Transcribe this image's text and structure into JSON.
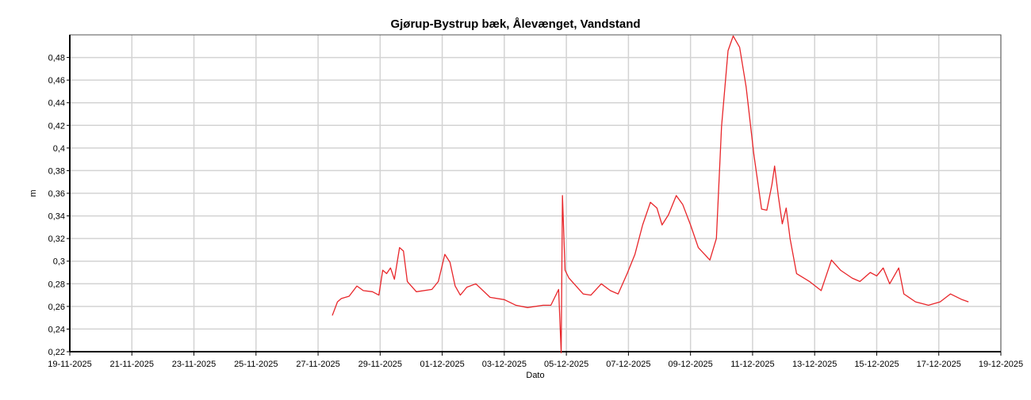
{
  "chart_data": {
    "type": "line",
    "title": "Gjørup-Bystrup bæk, Ålevænget, Vandstand",
    "xlabel": "Dato",
    "ylabel": "m",
    "color": "#e8262a",
    "grid": true,
    "xlim": [
      "2025-11-19 00:00",
      "2025-12-19 00:00"
    ],
    "xticks": [
      {
        "value": "2025-11-19 00:00",
        "label": "19-11-2025"
      },
      {
        "value": "2025-11-21 00:00",
        "label": "21-11-2025"
      },
      {
        "value": "2025-11-23 00:00",
        "label": "23-11-2025"
      },
      {
        "value": "2025-11-25 00:00",
        "label": "25-11-2025"
      },
      {
        "value": "2025-11-27 00:00",
        "label": "27-11-2025"
      },
      {
        "value": "2025-11-29 00:00",
        "label": "29-11-2025"
      },
      {
        "value": "2025-12-01 00:00",
        "label": "01-12-2025"
      },
      {
        "value": "2025-12-03 00:00",
        "label": "03-12-2025"
      },
      {
        "value": "2025-12-05 00:00",
        "label": "05-12-2025"
      },
      {
        "value": "2025-12-07 00:00",
        "label": "07-12-2025"
      },
      {
        "value": "2025-12-09 00:00",
        "label": "09-12-2025"
      },
      {
        "value": "2025-12-11 00:00",
        "label": "11-12-2025"
      },
      {
        "value": "2025-12-13 00:00",
        "label": "13-12-2025"
      },
      {
        "value": "2025-12-15 00:00",
        "label": "15-12-2025"
      },
      {
        "value": "2025-12-17 00:00",
        "label": "17-12-2025"
      },
      {
        "value": "2025-12-19 00:00",
        "label": "19-12-2025"
      }
    ],
    "ylim": [
      0.22,
      0.5
    ],
    "yticks": [
      {
        "value": 0.22,
        "label": "0,22"
      },
      {
        "value": 0.24,
        "label": "0,24"
      },
      {
        "value": 0.26,
        "label": "0,26"
      },
      {
        "value": 0.28,
        "label": "0,28"
      },
      {
        "value": 0.3,
        "label": "0,3"
      },
      {
        "value": 0.32,
        "label": "0,32"
      },
      {
        "value": 0.34,
        "label": "0,34"
      },
      {
        "value": 0.36,
        "label": "0,36"
      },
      {
        "value": 0.38,
        "label": "0,38"
      },
      {
        "value": 0.4,
        "label": "0,4"
      },
      {
        "value": 0.42,
        "label": "0,42"
      },
      {
        "value": 0.44,
        "label": "0,44"
      },
      {
        "value": 0.46,
        "label": "0,46"
      },
      {
        "value": 0.48,
        "label": "0,48"
      }
    ],
    "x": [
      "2025-11-27 11:00",
      "2025-11-27 15:00",
      "2025-11-27 18:00",
      "2025-11-28 00:00",
      "2025-11-28 06:00",
      "2025-11-28 11:00",
      "2025-11-28 18:00",
      "2025-11-28 23:00",
      "2025-11-29 02:00",
      "2025-11-29 05:00",
      "2025-11-29 08:00",
      "2025-11-29 11:00",
      "2025-11-29 15:00",
      "2025-11-29 18:00",
      "2025-11-29 21:00",
      "2025-11-30 04:00",
      "2025-11-30 16:00",
      "2025-11-30 21:00",
      "2025-12-01 02:00",
      "2025-12-01 06:00",
      "2025-12-01 10:00",
      "2025-12-01 14:00",
      "2025-12-01 19:00",
      "2025-12-02 02:00",
      "2025-12-02 13:00",
      "2025-12-03 00:00",
      "2025-12-03 09:00",
      "2025-12-03 18:00",
      "2025-12-04 06:00",
      "2025-12-04 12:00",
      "2025-12-04 18:00",
      "2025-12-04 20:00",
      "2025-12-04 21:00",
      "2025-12-04 23:00",
      "2025-12-05 02:00",
      "2025-12-05 13:00",
      "2025-12-05 19:00",
      "2025-12-06 03:00",
      "2025-12-06 10:00",
      "2025-12-06 16:00",
      "2025-12-06 23:00",
      "2025-12-07 05:00",
      "2025-12-07 11:00",
      "2025-12-07 17:00",
      "2025-12-07 22:00",
      "2025-12-08 02:00",
      "2025-12-08 07:00",
      "2025-12-08 13:00",
      "2025-12-08 18:00",
      "2025-12-09 00:00",
      "2025-12-09 06:00",
      "2025-12-09 15:00",
      "2025-12-09 20:00",
      "2025-12-10 00:00",
      "2025-12-10 05:00",
      "2025-12-10 09:00",
      "2025-12-10 14:00",
      "2025-12-10 19:00",
      "2025-12-11 01:00",
      "2025-12-11 07:00",
      "2025-12-11 11:00",
      "2025-12-11 15:00",
      "2025-12-11 17:00",
      "2025-12-11 20:00",
      "2025-12-11 23:00",
      "2025-12-12 02:00",
      "2025-12-12 05:00",
      "2025-12-12 10:00",
      "2025-12-12 20:00",
      "2025-12-13 05:00",
      "2025-12-13 13:00",
      "2025-12-13 20:00",
      "2025-12-14 05:00",
      "2025-12-14 11:00",
      "2025-12-14 19:00",
      "2025-12-15 00:00",
      "2025-12-15 05:00",
      "2025-12-15 10:00",
      "2025-12-15 17:00",
      "2025-12-15 21:00",
      "2025-12-16 06:00",
      "2025-12-16 16:00",
      "2025-12-17 01:00",
      "2025-12-17 09:00",
      "2025-12-17 18:00",
      "2025-12-17 23:00"
    ],
    "values": [
      0.252,
      0.264,
      0.267,
      0.269,
      0.278,
      0.274,
      0.273,
      0.27,
      0.292,
      0.289,
      0.294,
      0.284,
      0.312,
      0.309,
      0.282,
      0.273,
      0.275,
      0.282,
      0.306,
      0.299,
      0.278,
      0.27,
      0.277,
      0.28,
      0.268,
      0.266,
      0.261,
      0.259,
      0.261,
      0.261,
      0.275,
      0.219,
      0.358,
      0.292,
      0.285,
      0.271,
      0.27,
      0.28,
      0.274,
      0.271,
      0.289,
      0.306,
      0.332,
      0.352,
      0.347,
      0.332,
      0.341,
      0.358,
      0.35,
      0.332,
      0.312,
      0.301,
      0.32,
      0.419,
      0.486,
      0.499,
      0.489,
      0.454,
      0.394,
      0.346,
      0.345,
      0.368,
      0.384,
      0.357,
      0.333,
      0.347,
      0.32,
      0.289,
      0.282,
      0.274,
      0.301,
      0.292,
      0.285,
      0.282,
      0.29,
      0.287,
      0.294,
      0.28,
      0.294,
      0.271,
      0.264,
      0.261,
      0.264,
      0.271,
      0.266,
      0.264
    ]
  }
}
